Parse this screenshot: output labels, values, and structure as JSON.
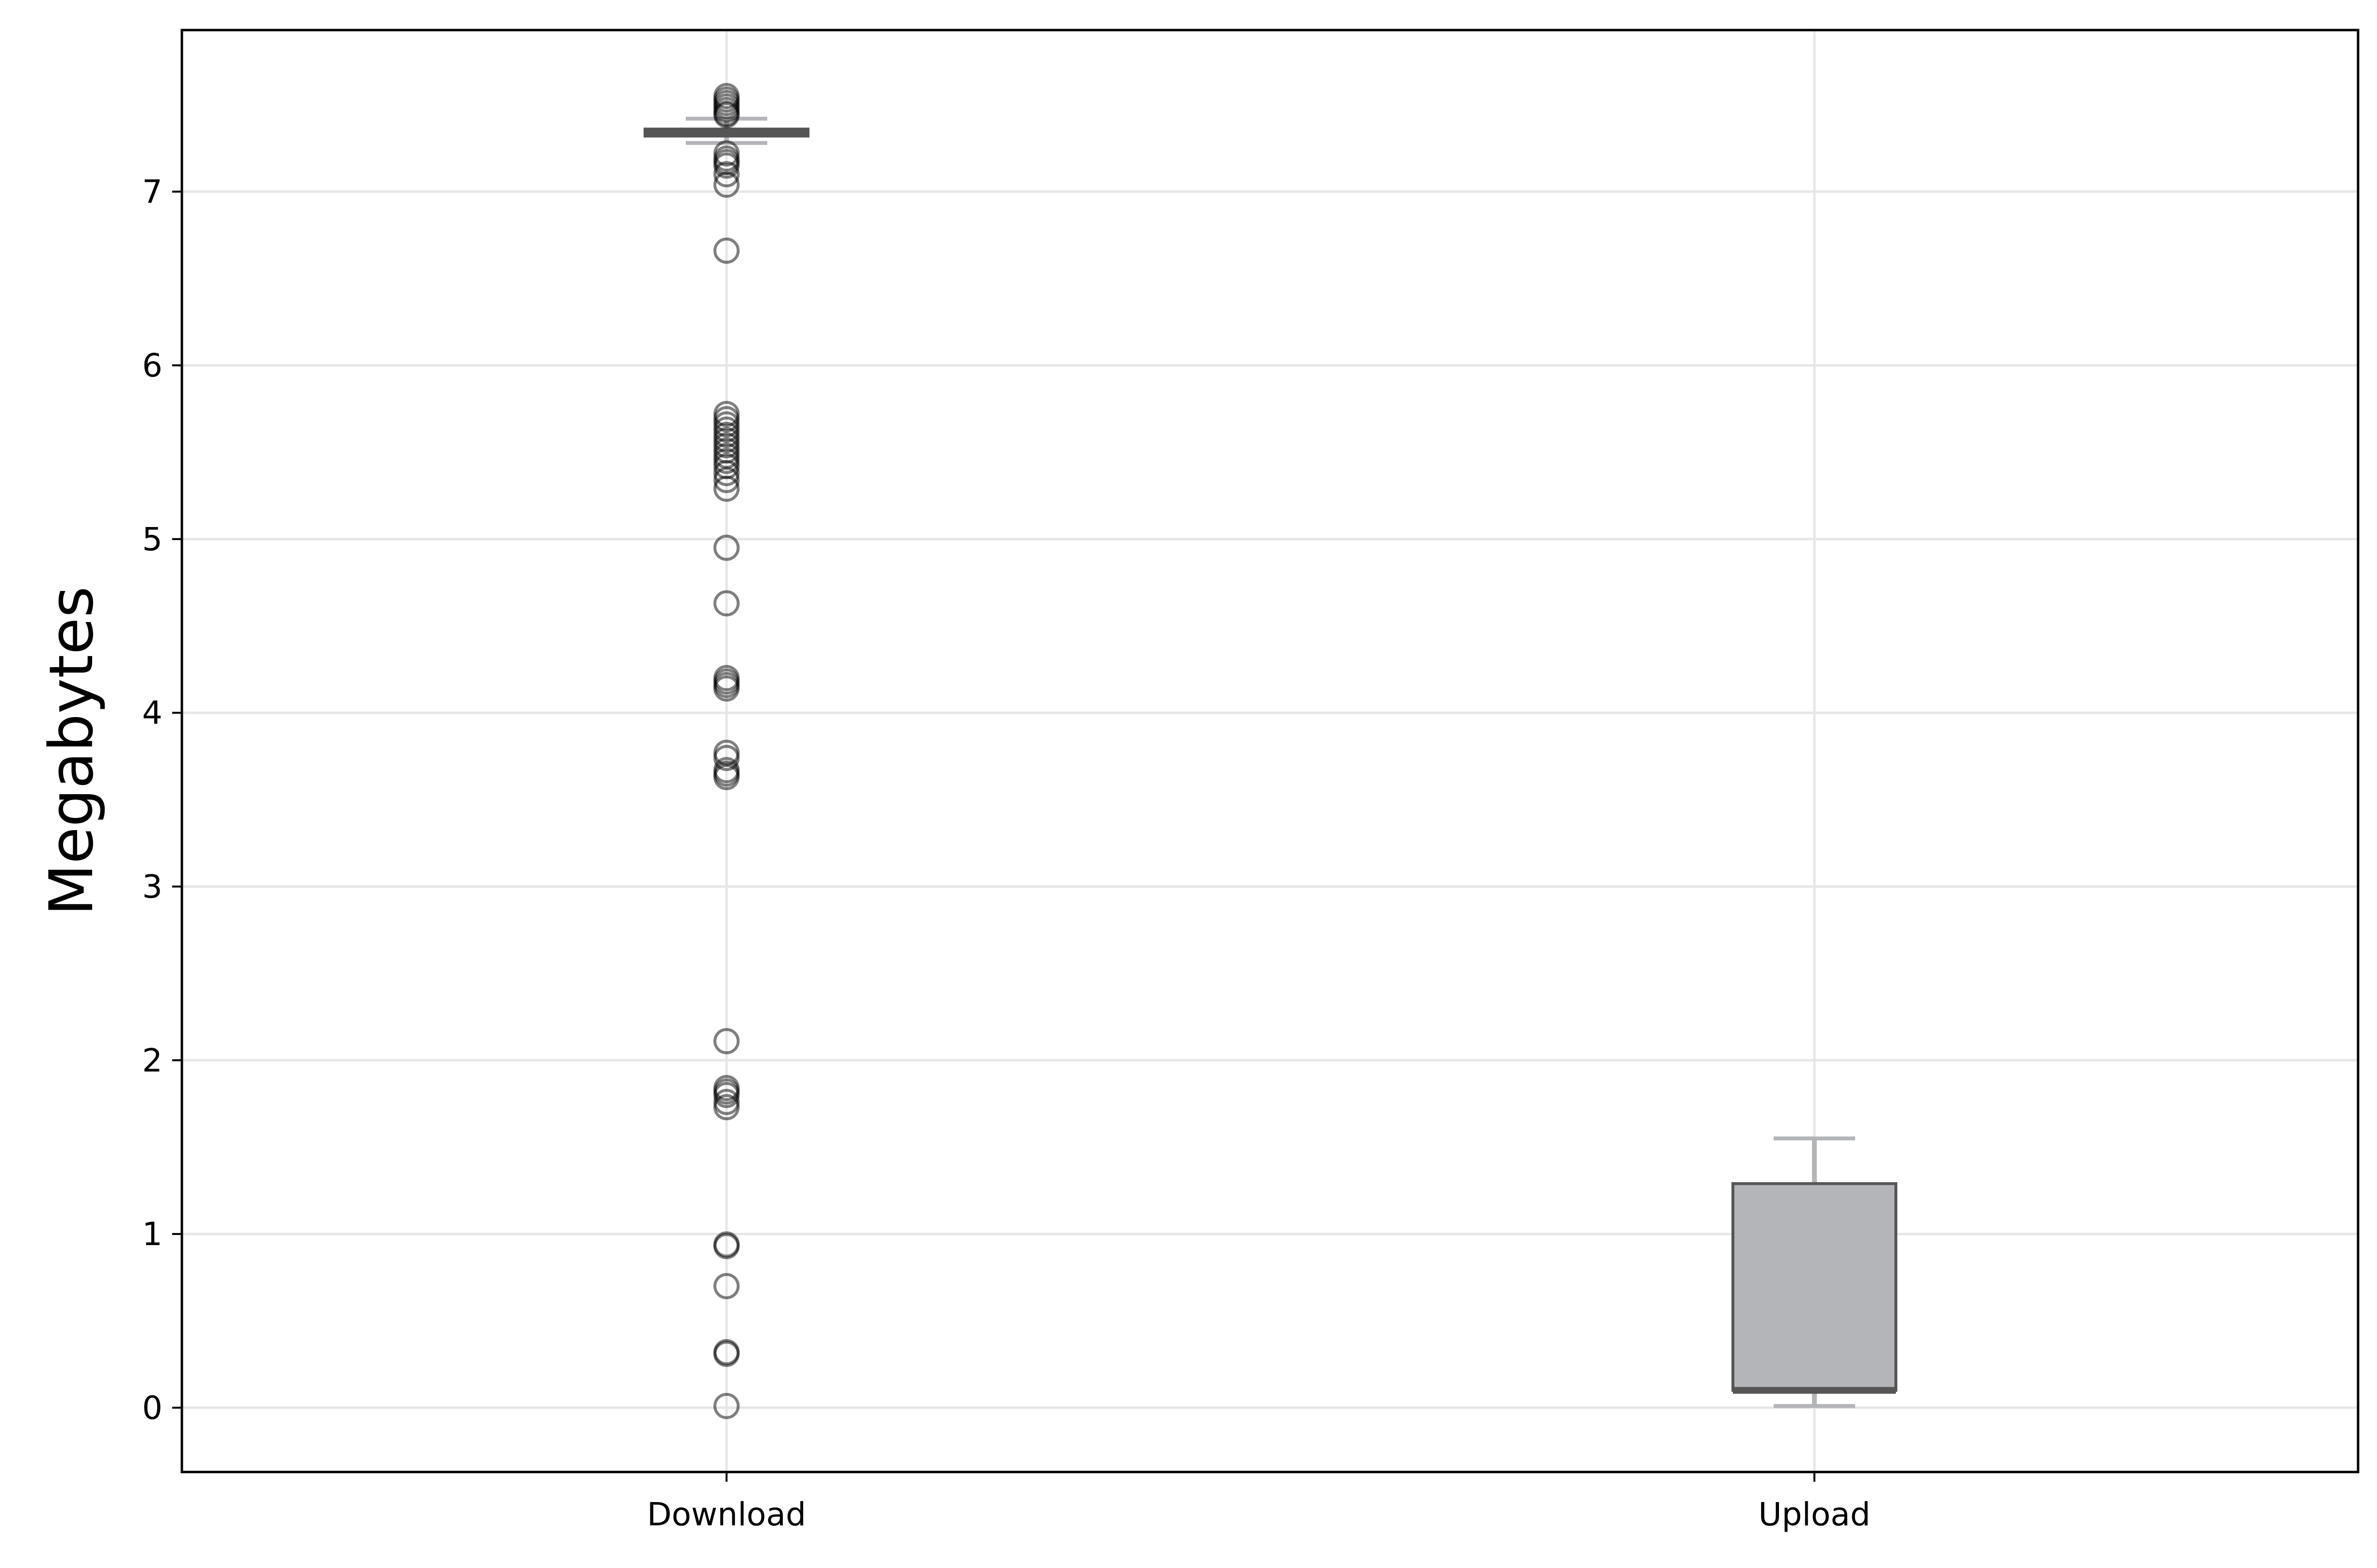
{
  "chart_data": {
    "type": "box",
    "ylabel": "Megabytes",
    "xlabel": "",
    "title": "",
    "ylim": [
      -0.37,
      7.93
    ],
    "yticks": [
      0,
      1,
      2,
      3,
      4,
      5,
      6,
      7
    ],
    "ytick_labels": [
      "0",
      "1",
      "2",
      "3",
      "4",
      "5",
      "6",
      "7"
    ],
    "grid": true,
    "categories": [
      "Download",
      "Upload"
    ],
    "boxes": [
      {
        "name": "Download",
        "whisker_low": 7.28,
        "q1": 7.32,
        "median": 7.34,
        "q3": 7.36,
        "whisker_high": 7.42,
        "outliers": [
          7.55,
          7.53,
          7.51,
          7.49,
          7.47,
          7.45,
          7.44,
          7.22,
          7.19,
          7.17,
          7.15,
          7.1,
          7.04,
          6.66,
          5.72,
          5.69,
          5.66,
          5.63,
          5.6,
          5.57,
          5.54,
          5.51,
          5.48,
          5.45,
          5.42,
          5.38,
          5.34,
          5.29,
          4.95,
          4.63,
          4.2,
          4.18,
          4.16,
          4.14,
          3.77,
          3.74,
          3.67,
          3.65,
          3.63,
          2.11,
          1.84,
          1.82,
          1.8,
          1.76,
          1.73,
          0.94,
          0.93,
          0.7,
          0.32,
          0.31,
          0.01
        ]
      },
      {
        "name": "Upload",
        "whisker_low": 0.01,
        "q1": 0.1,
        "median": 0.1,
        "q3": 1.29,
        "whisker_high": 1.55,
        "outliers": []
      }
    ]
  },
  "colors": {
    "box_fill": "#b3b5b9",
    "box_edge": "#555555",
    "median": "#555555",
    "whisker": "#b3b5b9",
    "outlier_edge": "#000000",
    "grid": "#e6e6e6",
    "axes": "#000000"
  }
}
